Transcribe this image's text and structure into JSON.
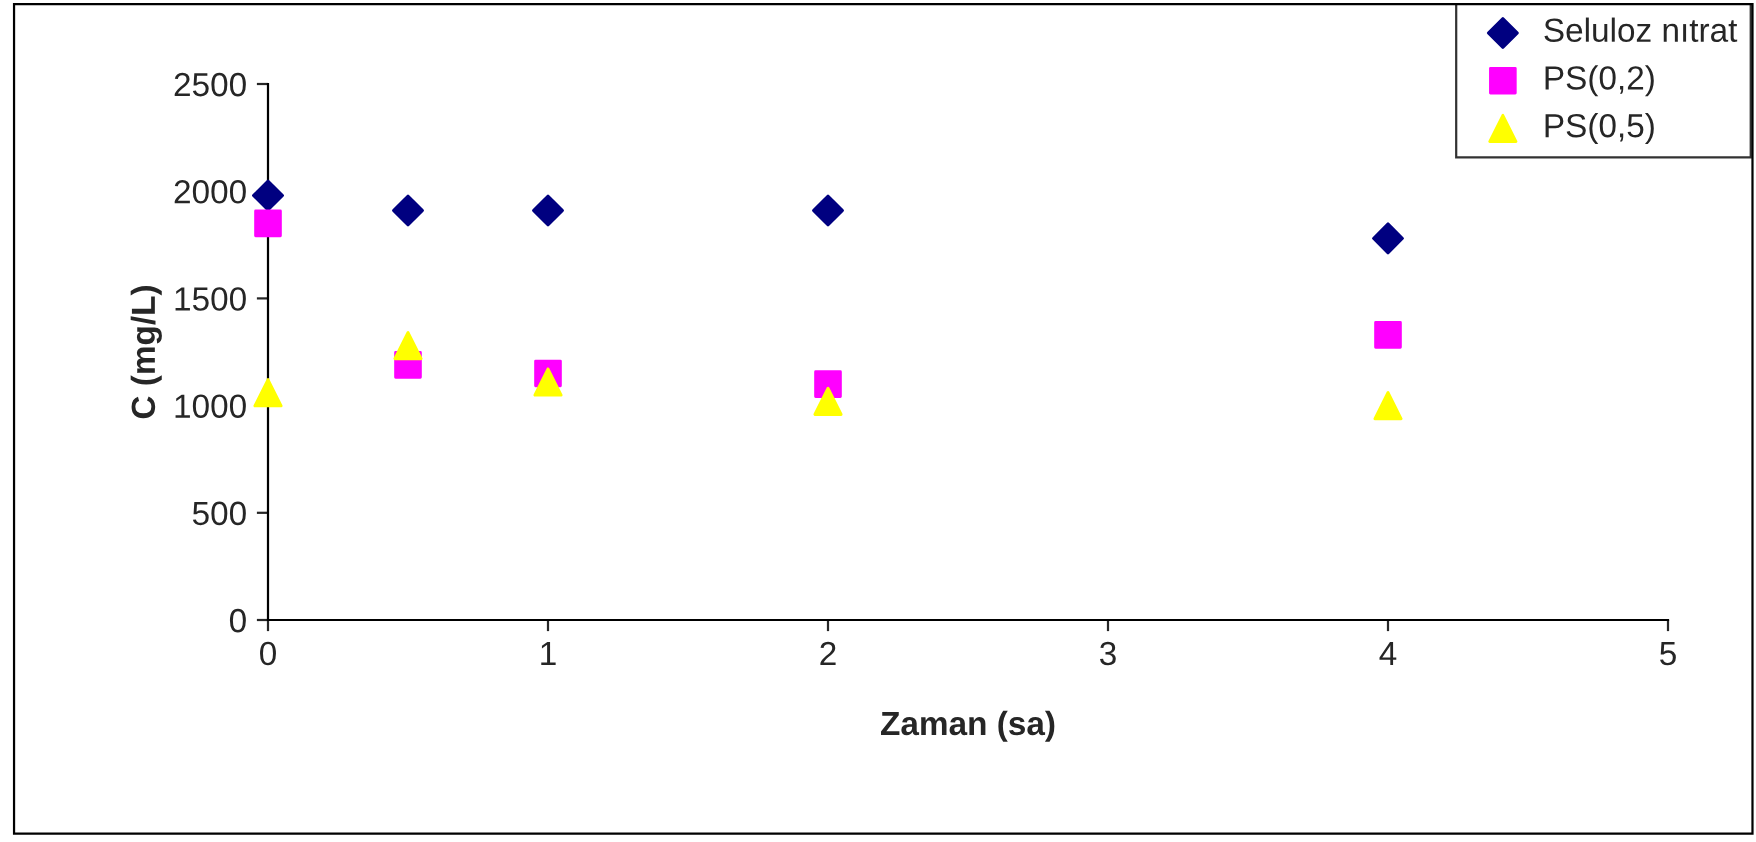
{
  "chart_data": {
    "type": "scatter",
    "xlabel": "Zaman (sa)",
    "ylabel": "C (mg/L)",
    "x": [
      0,
      0.5,
      1,
      2,
      4
    ],
    "series": [
      {
        "name": "Seluloz nıtrat",
        "color": "#000080",
        "marker": "diamond",
        "values": [
          1980,
          1910,
          1910,
          1910,
          1780
        ]
      },
      {
        "name": "PS(0,2)",
        "color": "#ff00ff",
        "marker": "square",
        "values": [
          1850,
          1190,
          1150,
          1100,
          1330
        ]
      },
      {
        "name": "PS(0,5)",
        "color": "#ffff00",
        "marker": "triangle",
        "values": [
          1060,
          1280,
          1110,
          1020,
          1000
        ]
      }
    ],
    "xlim": [
      0,
      5
    ],
    "xticks": [
      0,
      1,
      2,
      3,
      4,
      5
    ],
    "ylim": [
      0,
      2500
    ],
    "yticks": [
      0,
      500,
      1000,
      1500,
      2000,
      2500
    ],
    "grid": false,
    "legend": "top right"
  }
}
